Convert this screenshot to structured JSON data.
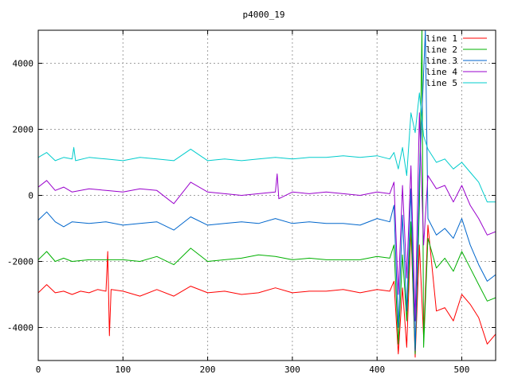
{
  "chart_data": {
    "type": "line",
    "title": "p4000_19",
    "xlabel": "",
    "ylabel": "",
    "xlim": [
      0,
      540
    ],
    "ylim": [
      -5000,
      5000
    ],
    "x_ticks": [
      0,
      100,
      200,
      300,
      400,
      500
    ],
    "y_ticks": [
      -4000,
      -2000,
      0,
      2000,
      4000
    ],
    "grid": true,
    "legend_position": "top-right",
    "series": [
      {
        "name": "line 1",
        "color": "#ff0000",
        "points": [
          [
            0,
            -2950
          ],
          [
            10,
            -2700
          ],
          [
            20,
            -2950
          ],
          [
            30,
            -2900
          ],
          [
            40,
            -3000
          ],
          [
            50,
            -2900
          ],
          [
            60,
            -2950
          ],
          [
            70,
            -2850
          ],
          [
            80,
            -2900
          ],
          [
            82,
            -1700
          ],
          [
            84,
            -4250
          ],
          [
            86,
            -2850
          ],
          [
            100,
            -2900
          ],
          [
            120,
            -3050
          ],
          [
            140,
            -2850
          ],
          [
            160,
            -3050
          ],
          [
            180,
            -2750
          ],
          [
            200,
            -2950
          ],
          [
            220,
            -2900
          ],
          [
            240,
            -3000
          ],
          [
            260,
            -2950
          ],
          [
            280,
            -2800
          ],
          [
            300,
            -2950
          ],
          [
            320,
            -2900
          ],
          [
            340,
            -2900
          ],
          [
            360,
            -2850
          ],
          [
            380,
            -2950
          ],
          [
            400,
            -2850
          ],
          [
            415,
            -2900
          ],
          [
            420,
            -2600
          ],
          [
            425,
            -4800
          ],
          [
            430,
            -2800
          ],
          [
            435,
            -4600
          ],
          [
            440,
            -1000
          ],
          [
            445,
            -4900
          ],
          [
            450,
            -1500
          ],
          [
            455,
            -4300
          ],
          [
            460,
            -900
          ],
          [
            470,
            -3500
          ],
          [
            480,
            -3400
          ],
          [
            490,
            -3800
          ],
          [
            500,
            -3000
          ],
          [
            510,
            -3300
          ],
          [
            520,
            -3700
          ],
          [
            530,
            -4500
          ],
          [
            540,
            -4200
          ]
        ]
      },
      {
        "name": "line 2",
        "color": "#00b000",
        "points": [
          [
            0,
            -1950
          ],
          [
            10,
            -1700
          ],
          [
            20,
            -2000
          ],
          [
            30,
            -1900
          ],
          [
            40,
            -2000
          ],
          [
            60,
            -1950
          ],
          [
            80,
            -1950
          ],
          [
            100,
            -1950
          ],
          [
            120,
            -2000
          ],
          [
            140,
            -1850
          ],
          [
            160,
            -2100
          ],
          [
            180,
            -1600
          ],
          [
            200,
            -2000
          ],
          [
            220,
            -1950
          ],
          [
            240,
            -1900
          ],
          [
            260,
            -1800
          ],
          [
            280,
            -1850
          ],
          [
            300,
            -1950
          ],
          [
            320,
            -1900
          ],
          [
            340,
            -1950
          ],
          [
            360,
            -1950
          ],
          [
            380,
            -1950
          ],
          [
            400,
            -1850
          ],
          [
            415,
            -1900
          ],
          [
            420,
            -1500
          ],
          [
            425,
            -4500
          ],
          [
            430,
            -1800
          ],
          [
            435,
            -3800
          ],
          [
            440,
            -800
          ],
          [
            445,
            -4800
          ],
          [
            450,
            -300
          ],
          [
            453,
            5000
          ],
          [
            455,
            -4600
          ],
          [
            460,
            -1300
          ],
          [
            470,
            -2200
          ],
          [
            480,
            -1900
          ],
          [
            490,
            -2300
          ],
          [
            500,
            -1700
          ],
          [
            510,
            -2200
          ],
          [
            520,
            -2700
          ],
          [
            530,
            -3200
          ],
          [
            540,
            -3100
          ]
        ]
      },
      {
        "name": "line 3",
        "color": "#0066cc",
        "points": [
          [
            0,
            -750
          ],
          [
            10,
            -500
          ],
          [
            20,
            -800
          ],
          [
            30,
            -950
          ],
          [
            40,
            -800
          ],
          [
            60,
            -850
          ],
          [
            80,
            -800
          ],
          [
            100,
            -900
          ],
          [
            120,
            -850
          ],
          [
            140,
            -800
          ],
          [
            160,
            -1050
          ],
          [
            180,
            -650
          ],
          [
            200,
            -900
          ],
          [
            220,
            -850
          ],
          [
            240,
            -800
          ],
          [
            260,
            -850
          ],
          [
            280,
            -700
          ],
          [
            300,
            -850
          ],
          [
            320,
            -800
          ],
          [
            340,
            -850
          ],
          [
            360,
            -850
          ],
          [
            380,
            -900
          ],
          [
            400,
            -700
          ],
          [
            415,
            -800
          ],
          [
            420,
            -300
          ],
          [
            425,
            -4000
          ],
          [
            430,
            -600
          ],
          [
            435,
            -3500
          ],
          [
            440,
            200
          ],
          [
            445,
            -4700
          ],
          [
            450,
            600
          ],
          [
            457,
            5000
          ],
          [
            460,
            -700
          ],
          [
            470,
            -1200
          ],
          [
            480,
            -1000
          ],
          [
            490,
            -1300
          ],
          [
            500,
            -700
          ],
          [
            510,
            -1500
          ],
          [
            520,
            -2100
          ],
          [
            530,
            -2600
          ],
          [
            540,
            -2400
          ]
        ]
      },
      {
        "name": "line 4",
        "color": "#9900cc",
        "points": [
          [
            0,
            250
          ],
          [
            10,
            450
          ],
          [
            20,
            150
          ],
          [
            30,
            250
          ],
          [
            40,
            100
          ],
          [
            60,
            200
          ],
          [
            80,
            150
          ],
          [
            100,
            100
          ],
          [
            120,
            200
          ],
          [
            140,
            150
          ],
          [
            160,
            -250
          ],
          [
            180,
            400
          ],
          [
            200,
            100
          ],
          [
            220,
            50
          ],
          [
            240,
            0
          ],
          [
            260,
            50
          ],
          [
            280,
            100
          ],
          [
            282,
            650
          ],
          [
            284,
            -100
          ],
          [
            300,
            100
          ],
          [
            320,
            50
          ],
          [
            340,
            100
          ],
          [
            360,
            50
          ],
          [
            380,
            0
          ],
          [
            400,
            100
          ],
          [
            415,
            50
          ],
          [
            420,
            400
          ],
          [
            425,
            -3000
          ],
          [
            430,
            300
          ],
          [
            435,
            -2500
          ],
          [
            440,
            900
          ],
          [
            445,
            -3800
          ],
          [
            450,
            2500
          ],
          [
            455,
            -1500
          ],
          [
            460,
            600
          ],
          [
            470,
            200
          ],
          [
            480,
            300
          ],
          [
            490,
            -200
          ],
          [
            500,
            300
          ],
          [
            510,
            -300
          ],
          [
            520,
            -700
          ],
          [
            530,
            -1200
          ],
          [
            540,
            -1100
          ]
        ]
      },
      {
        "name": "line 5",
        "color": "#00cccc",
        "points": [
          [
            0,
            1150
          ],
          [
            10,
            1300
          ],
          [
            20,
            1050
          ],
          [
            30,
            1150
          ],
          [
            40,
            1100
          ],
          [
            42,
            1450
          ],
          [
            44,
            1050
          ],
          [
            60,
            1150
          ],
          [
            80,
            1100
          ],
          [
            100,
            1050
          ],
          [
            120,
            1150
          ],
          [
            140,
            1100
          ],
          [
            160,
            1050
          ],
          [
            180,
            1400
          ],
          [
            200,
            1050
          ],
          [
            220,
            1100
          ],
          [
            240,
            1050
          ],
          [
            260,
            1100
          ],
          [
            280,
            1150
          ],
          [
            300,
            1100
          ],
          [
            320,
            1150
          ],
          [
            340,
            1150
          ],
          [
            360,
            1200
          ],
          [
            380,
            1150
          ],
          [
            400,
            1200
          ],
          [
            415,
            1100
          ],
          [
            420,
            1300
          ],
          [
            425,
            800
          ],
          [
            430,
            1450
          ],
          [
            435,
            600
          ],
          [
            440,
            2500
          ],
          [
            445,
            1900
          ],
          [
            450,
            3100
          ],
          [
            455,
            1800
          ],
          [
            460,
            1400
          ],
          [
            470,
            1000
          ],
          [
            480,
            1100
          ],
          [
            490,
            800
          ],
          [
            500,
            1000
          ],
          [
            510,
            700
          ],
          [
            520,
            400
          ],
          [
            530,
            -200
          ],
          [
            540,
            -200
          ]
        ]
      }
    ]
  }
}
